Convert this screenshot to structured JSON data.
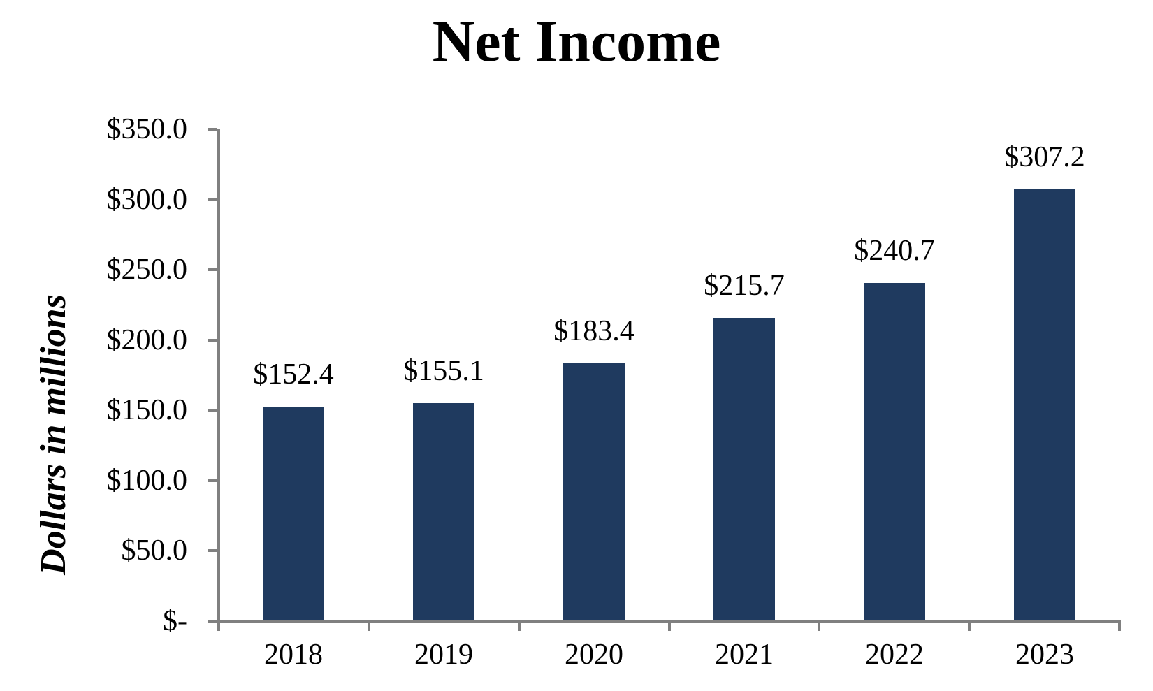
{
  "chart_data": {
    "type": "bar",
    "title": "Net Income",
    "ylabel": "Dollars in millions",
    "xlabel": "",
    "categories": [
      "2018",
      "2019",
      "2020",
      "2021",
      "2022",
      "2023"
    ],
    "values": [
      152.4,
      155.1,
      183.4,
      215.7,
      240.7,
      307.2
    ],
    "value_labels": [
      "$152.4",
      "$155.1",
      "$183.4",
      "$215.7",
      "$240.7",
      "$307.2"
    ],
    "y_ticks": [
      {
        "value": 0,
        "label": "$-"
      },
      {
        "value": 50,
        "label": "$50.0"
      },
      {
        "value": 100,
        "label": "$100.0"
      },
      {
        "value": 150,
        "label": "$150.0"
      },
      {
        "value": 200,
        "label": "$200.0"
      },
      {
        "value": 250,
        "label": "$250.0"
      },
      {
        "value": 300,
        "label": "$300.0"
      },
      {
        "value": 350,
        "label": "$350.0"
      }
    ],
    "ylim": [
      0,
      350
    ],
    "grid": false,
    "legend_position": "none",
    "colors": {
      "bar": "#1F3A5F",
      "axis": "#808080",
      "text": "#000000",
      "background": "#FFFFFF"
    }
  }
}
